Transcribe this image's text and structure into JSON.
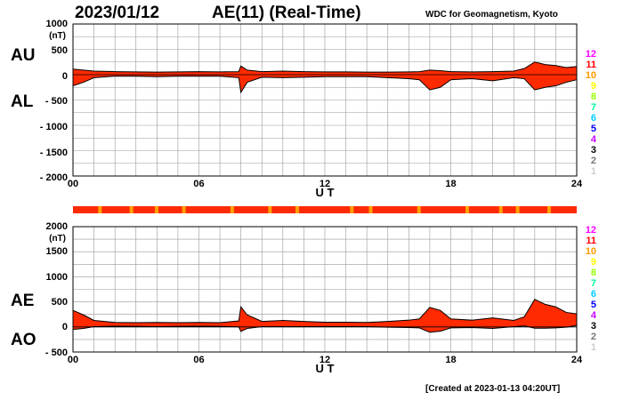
{
  "header": {
    "date": "2023/01/12",
    "title": "AE(11) (Real-Time)",
    "source": "WDC for Geomagnetism, Kyoto"
  },
  "footer": {
    "created": "[Created at 2023-01-13 04:20UT]"
  },
  "colors": {
    "fill": "#ff2a00",
    "line": "#000000",
    "grid": "#999999",
    "bar_main": "#ff2a00",
    "bar_accent": "#ffa000",
    "stations": [
      "#ff00ff",
      "#ff0000",
      "#ff9900",
      "#ffff00",
      "#99ff00",
      "#00ff99",
      "#00ccff",
      "#0000ff",
      "#cc00ff",
      "#000000",
      "#777777",
      "#cccccc"
    ]
  },
  "station_legend": [
    "12",
    "11",
    "10",
    "9",
    "8",
    "7",
    "6",
    "5",
    "4",
    "3",
    "2",
    "1"
  ],
  "chart_data": [
    {
      "type": "area",
      "panel": "AU/AL",
      "unit_label": "(nT)",
      "series_labels": {
        "upper": "AU",
        "lower": "AL"
      },
      "xlabel": "U T",
      "xlim": [
        0,
        24
      ],
      "x_ticks": [
        "00",
        "06",
        "12",
        "18",
        "24"
      ],
      "ylim": [
        -2000,
        1000
      ],
      "y_ticks": [
        "1000",
        "500",
        "0",
        "- 500",
        "- 1000",
        "- 1500",
        "- 2000"
      ],
      "grid": true,
      "series": [
        {
          "name": "AU",
          "x": [
            0,
            0.5,
            1,
            2,
            3,
            4,
            5,
            6,
            7,
            7.9,
            8,
            8.3,
            9,
            10,
            11,
            12,
            13,
            14,
            15,
            16,
            16.5,
            17,
            17.5,
            18,
            19,
            20,
            21,
            21.5,
            22,
            22.5,
            23,
            23.5,
            24
          ],
          "values": [
            110,
            90,
            70,
            60,
            55,
            50,
            55,
            60,
            55,
            60,
            170,
            90,
            60,
            70,
            60,
            55,
            55,
            50,
            50,
            55,
            60,
            90,
            80,
            60,
            55,
            60,
            70,
            120,
            250,
            200,
            180,
            140,
            160
          ]
        },
        {
          "name": "AL",
          "x": [
            0,
            0.5,
            1,
            2,
            3,
            4,
            5,
            6,
            7,
            7.9,
            8,
            8.3,
            9,
            10,
            11,
            12,
            13,
            14,
            15,
            16,
            16.5,
            17,
            17.5,
            18,
            19,
            20,
            21,
            21.5,
            22,
            22.5,
            23,
            23.5,
            24
          ],
          "values": [
            -220,
            -150,
            -60,
            -30,
            -30,
            -40,
            -30,
            -30,
            -30,
            -60,
            -350,
            -150,
            -50,
            -60,
            -50,
            -40,
            -40,
            -40,
            -60,
            -80,
            -100,
            -300,
            -250,
            -100,
            -80,
            -120,
            -60,
            -80,
            -300,
            -250,
            -220,
            -150,
            -100
          ]
        }
      ]
    },
    {
      "type": "area",
      "panel": "AE/AO",
      "unit_label": "(nT)",
      "series_labels": {
        "upper": "AE",
        "lower": "AO"
      },
      "xlabel": "U T",
      "xlim": [
        0,
        24
      ],
      "x_ticks": [
        "00",
        "06",
        "12",
        "18",
        "24"
      ],
      "ylim": [
        -500,
        2000
      ],
      "y_ticks": [
        "2000",
        "1500",
        "1000",
        "500",
        "0",
        "- 500"
      ],
      "grid": true,
      "series": [
        {
          "name": "AE",
          "x": [
            0,
            0.5,
            1,
            2,
            3,
            4,
            5,
            6,
            7,
            7.9,
            8,
            8.3,
            9,
            10,
            11,
            12,
            13,
            14,
            15,
            16,
            16.5,
            17,
            17.5,
            18,
            19,
            20,
            21,
            21.5,
            22,
            22.5,
            23,
            23.5,
            24
          ],
          "values": [
            330,
            240,
            130,
            90,
            85,
            90,
            85,
            90,
            85,
            120,
            400,
            240,
            110,
            130,
            110,
            95,
            95,
            90,
            110,
            135,
            160,
            390,
            330,
            160,
            135,
            180,
            130,
            200,
            550,
            450,
            400,
            290,
            260
          ]
        },
        {
          "name": "AO",
          "x": [
            0,
            0.5,
            1,
            2,
            3,
            4,
            5,
            6,
            7,
            7.9,
            8,
            8.3,
            9,
            10,
            11,
            12,
            13,
            14,
            15,
            16,
            16.5,
            17,
            17.5,
            18,
            19,
            20,
            21,
            21.5,
            22,
            22.5,
            23,
            23.5,
            24
          ],
          "values": [
            -50,
            -30,
            5,
            15,
            12,
            5,
            12,
            15,
            12,
            0,
            -90,
            -30,
            5,
            5,
            5,
            8,
            8,
            5,
            -5,
            -12,
            -20,
            -105,
            -85,
            -20,
            -12,
            -30,
            5,
            20,
            -25,
            -25,
            -20,
            -5,
            30
          ]
        }
      ]
    }
  ]
}
